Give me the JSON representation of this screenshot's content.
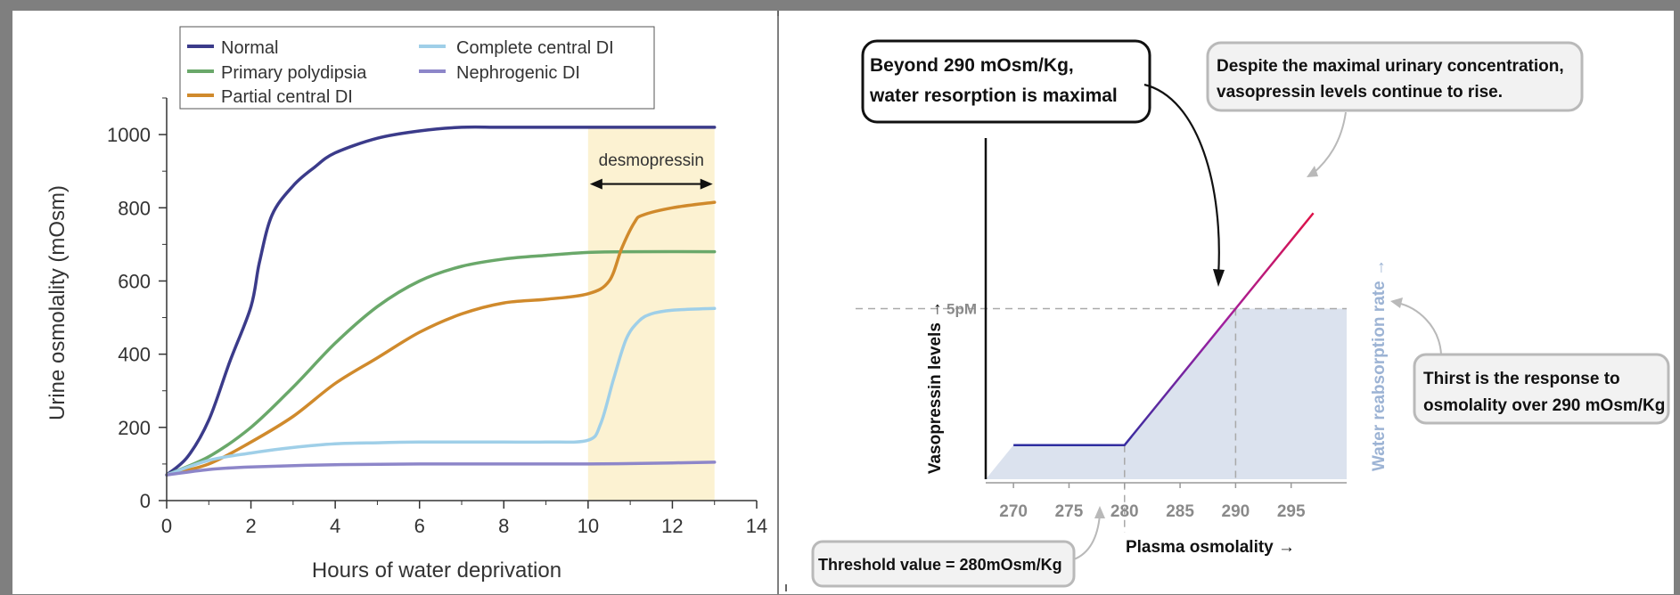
{
  "chart_data": [
    {
      "type": "line",
      "xlabel": "Hours of water deprivation",
      "ylabel": "Urine osmolality (mOsm)",
      "xlim": [
        0,
        14
      ],
      "ylim": [
        0,
        1100
      ],
      "x_ticks": [
        "0",
        "2",
        "4",
        "6",
        "8",
        "10",
        "12",
        "14"
      ],
      "y_ticks": [
        "0",
        "200",
        "400",
        "600",
        "800",
        "1000"
      ],
      "legend_placement": "top-left",
      "annotation": {
        "label": "desmopressin",
        "x_range": [
          10,
          13
        ],
        "shade_color": "#fcf2d2"
      },
      "series": [
        {
          "name": "Normal",
          "color": "#3b3b8a",
          "x": [
            0,
            0.5,
            1,
            1.5,
            2,
            2.2,
            2.5,
            3,
            3.5,
            4,
            5,
            6,
            7,
            8,
            10,
            13
          ],
          "y": [
            70,
            120,
            220,
            380,
            530,
            650,
            780,
            860,
            910,
            950,
            990,
            1010,
            1020,
            1020,
            1020,
            1020
          ]
        },
        {
          "name": "Primary polydipsia",
          "color": "#6aa86a",
          "x": [
            0,
            1,
            2,
            3,
            4,
            5,
            6,
            7,
            8,
            9,
            10,
            11,
            13
          ],
          "y": [
            70,
            120,
            200,
            310,
            430,
            530,
            600,
            640,
            660,
            670,
            678,
            680,
            680
          ]
        },
        {
          "name": "Partial central DI",
          "color": "#d08a2c",
          "x": [
            0,
            1,
            2,
            3,
            4,
            5,
            6,
            7,
            8,
            9,
            10,
            10.5,
            10.8,
            11.1,
            11.3,
            12,
            13
          ],
          "y": [
            70,
            100,
            160,
            230,
            320,
            390,
            460,
            510,
            540,
            550,
            565,
            600,
            690,
            760,
            780,
            800,
            815
          ]
        },
        {
          "name": "Complete central DI",
          "color": "#9fcfe8",
          "x": [
            0,
            1,
            2,
            3,
            4,
            5,
            6,
            7,
            8,
            9,
            10,
            10.3,
            10.6,
            10.9,
            11.2,
            11.5,
            12,
            13
          ],
          "y": [
            70,
            110,
            130,
            145,
            155,
            158,
            160,
            160,
            160,
            160,
            165,
            210,
            330,
            440,
            490,
            510,
            520,
            525
          ]
        },
        {
          "name": "Nephrogenic DI",
          "color": "#8d86c9",
          "x": [
            0,
            1,
            2,
            4,
            6,
            8,
            10,
            12,
            13
          ],
          "y": [
            70,
            85,
            92,
            98,
            100,
            100,
            100,
            103,
            105
          ]
        }
      ]
    },
    {
      "type": "line",
      "xlabel": "Plasma osmolality →",
      "ylabel": "Vasopressin levels →",
      "ylabel_right": "Water reabsorption rate →",
      "x_ticks": [
        "270",
        "275",
        "280",
        "285",
        "290",
        "295"
      ],
      "y_tick_label": "5pM",
      "xlim": [
        267.5,
        300
      ],
      "ylim": [
        0,
        10
      ],
      "reference_lines": {
        "x": [
          280,
          290
        ],
        "y": [
          5
        ]
      },
      "shaded_area": {
        "description": "water reabsorption",
        "color": "#dbe2ee"
      },
      "series": [
        {
          "x": [
            270,
            280,
            290,
            297
          ],
          "y": [
            1,
            1,
            5,
            7.8
          ]
        }
      ],
      "callouts": [
        {
          "id": "beyond290",
          "lines": [
            "Beyond 290 mOsm/Kg,",
            "water resorption is maximal"
          ]
        },
        {
          "id": "despite",
          "lines": [
            "Despite the maximal urinary concentration,",
            "vasopressin levels continue to rise."
          ]
        },
        {
          "id": "thirst",
          "lines": [
            "Thirst is the response to",
            "osmolality over 290 mOsm/Kg"
          ]
        },
        {
          "id": "threshold",
          "lines": [
            "Threshold value = 280mOsm/Kg"
          ]
        }
      ]
    }
  ]
}
